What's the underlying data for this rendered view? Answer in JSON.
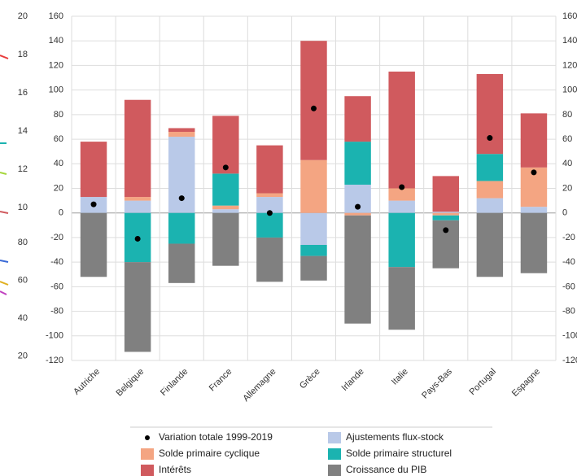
{
  "chart_data": {
    "type": "bar",
    "stacked": true,
    "categories": [
      "Autriche",
      "Belgique",
      "Finlande",
      "France",
      "Allemagne",
      "Grèce",
      "Irlande",
      "Italie",
      "Pays-Bas",
      "Portugal",
      "Espagne"
    ],
    "series": [
      {
        "name": "Ajustements flux-stock",
        "color": "#b9c9e8",
        "values": [
          13,
          10,
          62,
          3,
          13,
          -26,
          23,
          10,
          1,
          12,
          5
        ]
      },
      {
        "name": "Solde primaire cyclique",
        "color": "#f4a582",
        "values": [
          0,
          3,
          4,
          3,
          3,
          43,
          -2,
          10,
          -2,
          14,
          32
        ]
      },
      {
        "name": "Solde primaire structurel",
        "color": "#1bb3b0",
        "values": [
          0,
          -40,
          -25,
          26,
          -20,
          -9,
          35,
          -44,
          -4,
          22,
          0
        ]
      },
      {
        "name": "Intérêts",
        "color": "#d05a5e",
        "values": [
          45,
          79,
          3,
          47,
          39,
          97,
          37,
          95,
          29,
          65,
          44
        ]
      },
      {
        "name": "Croissance du PIB",
        "color": "#808080",
        "values": [
          -52,
          -73,
          -32,
          -43,
          -36,
          -20,
          -88,
          -51,
          -39,
          -52,
          -49
        ]
      }
    ],
    "markers": {
      "name": "Variation totale 1999-2019",
      "color": "#000000",
      "values": [
        7,
        -21,
        12,
        37,
        0,
        85,
        5,
        21,
        -14,
        61,
        33
      ]
    },
    "ylim": [
      -120,
      160
    ],
    "yticks": [
      -120,
      -100,
      -80,
      -60,
      -40,
      -20,
      0,
      20,
      40,
      60,
      80,
      100,
      120,
      140,
      160
    ],
    "grid": true,
    "right_axis": true,
    "legend": "bottom"
  },
  "left_fragment": {
    "upper_ticks": [
      20,
      18,
      16,
      14,
      12,
      10
    ],
    "lower_ticks": [
      80,
      60,
      40,
      20
    ]
  }
}
